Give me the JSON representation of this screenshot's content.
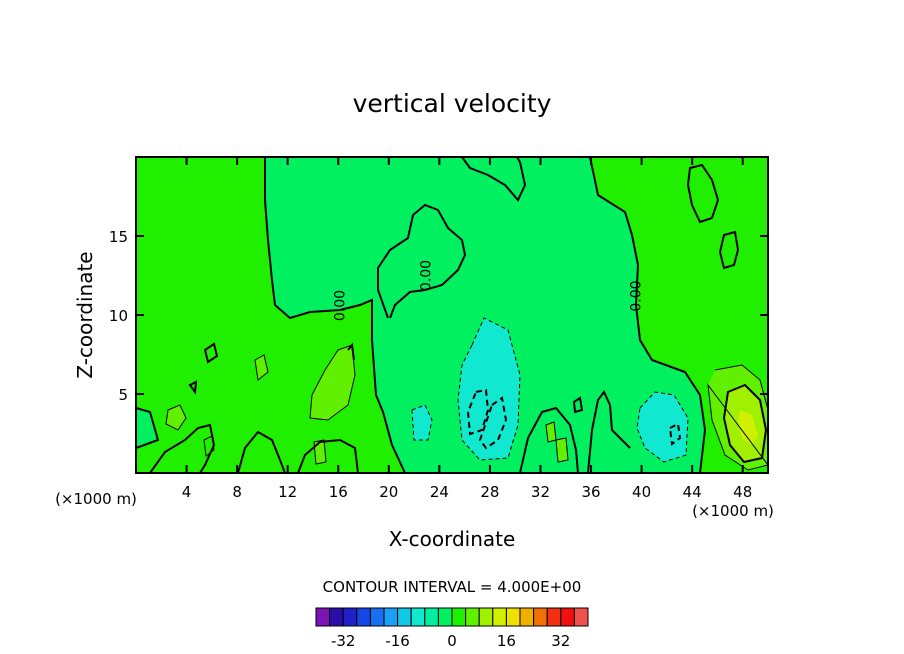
{
  "chart_data": {
    "type": "heatmap",
    "title": "vertical velocity",
    "xlabel": "X-coordinate",
    "ylabel": "Z-coordinate",
    "x_unit": "(×1000 m)",
    "x_unit_right": "(×1000 m)",
    "x_ticks": [
      4,
      8,
      12,
      16,
      20,
      24,
      28,
      32,
      36,
      40,
      44,
      48
    ],
    "y_ticks": [
      5,
      10,
      15
    ],
    "xlim": [
      0,
      50
    ],
    "ylim": [
      0,
      20
    ],
    "contour_interval_text": "CONTOUR INTERVAL = 4.000E+00",
    "contour_labels": [
      {
        "text": "0.00",
        "x": 16.5,
        "y": 10.6
      },
      {
        "text": "0.00",
        "x": 23.3,
        "y": 12.5
      },
      {
        "text": "0.00",
        "x": 39.9,
        "y": 11.2
      }
    ],
    "colorbar": {
      "tick_labels": [
        "-32",
        "-16",
        "0",
        "16",
        "32"
      ],
      "tick_values": [
        -32,
        -16,
        0,
        16,
        32
      ],
      "levels": [
        -40,
        -36,
        -32,
        -28,
        -24,
        -20,
        -16,
        -12,
        -8,
        -4,
        0,
        4,
        8,
        12,
        16,
        20,
        24,
        28,
        32,
        36,
        40
      ],
      "colors": [
        "#7a14b4",
        "#2b0ea8",
        "#2020c8",
        "#1448e6",
        "#1870f0",
        "#1aa0f4",
        "#10c8e8",
        "#10e8d0",
        "#00f0a0",
        "#00f060",
        "#20f000",
        "#60f000",
        "#a0f000",
        "#d0f000",
        "#f0e000",
        "#f0b000",
        "#f07000",
        "#f03010",
        "#f01010",
        "#f05050"
      ]
    },
    "background_value_color": "#20f000",
    "zero_region_color": "#00f060",
    "frame_color": "#000000"
  }
}
